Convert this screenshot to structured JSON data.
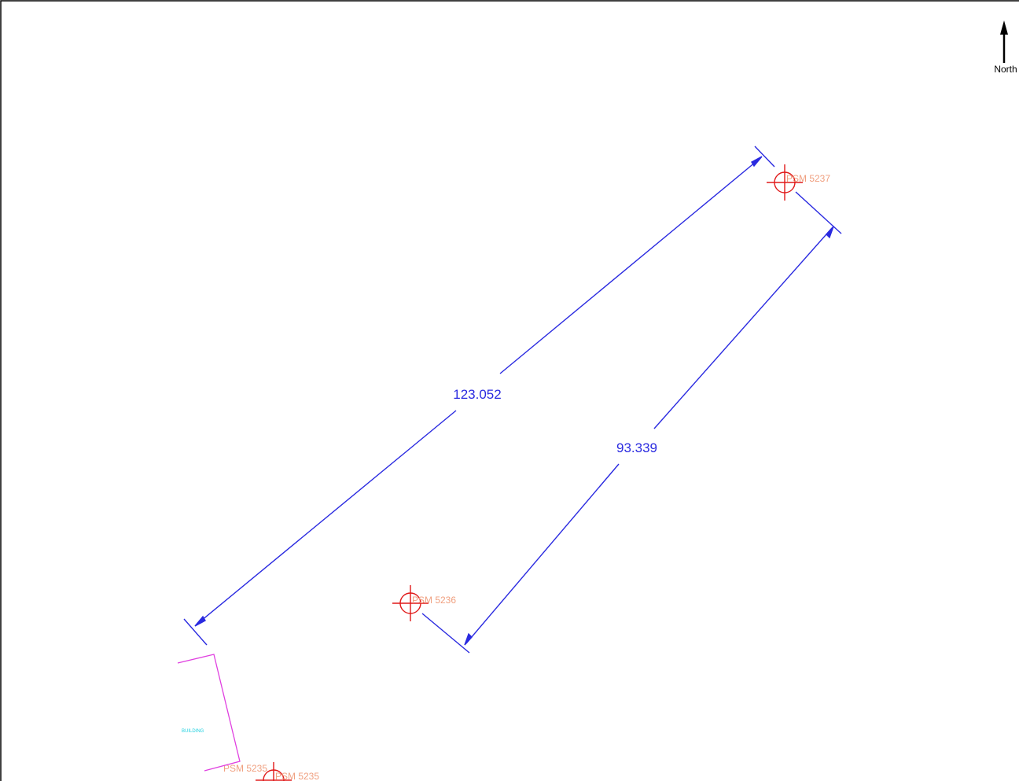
{
  "north_label": "North",
  "dimensions": [
    {
      "label": "123.052"
    },
    {
      "label": "93.339"
    }
  ],
  "markers": [
    {
      "label": "PSM 5237"
    },
    {
      "label": "PSM 5236"
    },
    {
      "label": "PSM 5235"
    },
    {
      "label": "PSM 5235"
    }
  ],
  "building": {
    "label": "BUILDING"
  }
}
